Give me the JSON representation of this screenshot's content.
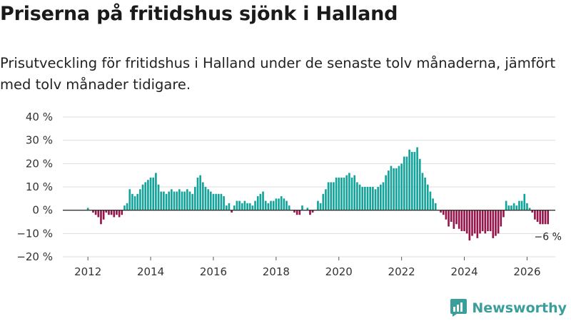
{
  "header": {
    "title": "Priserna på fritidshus sjönk i Halland",
    "subtitle": "Prisutveckling för fritidshus i Halland under de senaste tolv månaderna, jämfört med tolv månader tidigare."
  },
  "brand": {
    "name": "Newsworthy"
  },
  "colors": {
    "positive": "#12a39a",
    "negative": "#96144a",
    "grid": "#dddddd",
    "brand": "#3a9e9a"
  },
  "chart_data": {
    "type": "bar",
    "title": "Priserna på fritidshus sjönk i Halland",
    "xlabel": "",
    "ylabel": "",
    "ylim": [
      -20,
      40
    ],
    "yticks": [
      -20,
      -10,
      0,
      10,
      20,
      30,
      40
    ],
    "ytick_labels": [
      "−20 %",
      "−10 %",
      "0 %",
      "10 %",
      "20 %",
      "30 %",
      "40 %"
    ],
    "xlim": [
      2011.2,
      2026.9
    ],
    "xticks": [
      2012,
      2014,
      2016,
      2018,
      2020,
      2022,
      2024,
      2026
    ],
    "xtick_labels": [
      "2012",
      "2014",
      "2016",
      "2018",
      "2020",
      "2022",
      "2024",
      "2026"
    ],
    "start_year": 2012.0,
    "bar_step_years": 0.08333,
    "values": [
      1,
      0,
      -1,
      -2,
      -3,
      -6,
      -4,
      -1,
      -2,
      -2,
      -3,
      -2,
      -3,
      -2,
      2,
      3,
      9,
      7,
      6,
      7,
      9,
      11,
      12,
      13,
      14,
      14,
      16,
      11,
      8,
      8,
      7,
      8,
      9,
      8,
      8,
      9,
      8,
      8,
      9,
      8,
      7,
      10,
      14,
      15,
      12,
      10,
      9,
      8,
      7,
      7,
      7,
      7,
      6,
      2,
      3,
      -1,
      2,
      4,
      4,
      3,
      4,
      3,
      3,
      2,
      4,
      6,
      7,
      8,
      4,
      3,
      4,
      4,
      5,
      5,
      6,
      5,
      4,
      2,
      0,
      -1,
      -2,
      -2,
      2,
      0,
      1,
      -2,
      -1,
      0,
      4,
      3,
      7,
      9,
      12,
      12,
      12,
      14,
      14,
      14,
      14,
      15,
      16,
      14,
      15,
      12,
      11,
      10,
      10,
      10,
      10,
      10,
      9,
      10,
      11,
      12,
      15,
      17,
      19,
      18,
      18,
      19,
      20,
      23,
      23,
      26,
      25,
      25,
      27,
      22,
      16,
      14,
      11,
      8,
      5,
      3,
      0,
      -1,
      -2,
      -4,
      -7,
      -5,
      -8,
      -6,
      -8,
      -9,
      -9,
      -10,
      -13,
      -11,
      -10,
      -12,
      -10,
      -9,
      -10,
      -9,
      -9,
      -12,
      -11,
      -10,
      -7,
      -3,
      4,
      2,
      2,
      3,
      2,
      4,
      4,
      7,
      3,
      1,
      -1,
      -4,
      -5,
      -6,
      -6,
      -6,
      -6
    ],
    "annotations": [
      {
        "label": "−6 %",
        "value": -6
      }
    ]
  }
}
